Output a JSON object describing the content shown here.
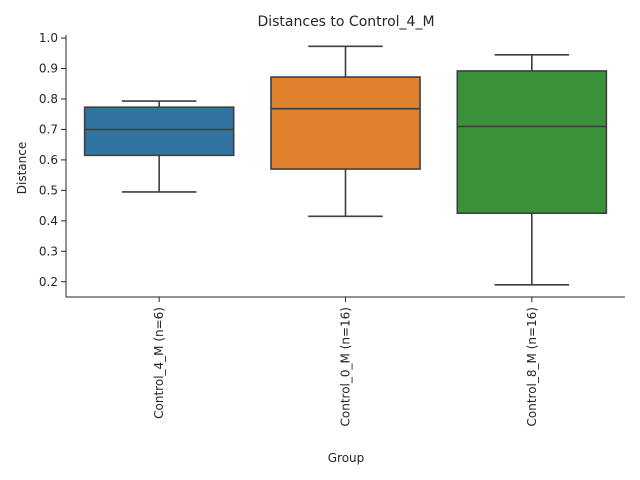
{
  "chart_data": {
    "type": "box",
    "title": "Distances to Control_4_M",
    "xlabel": "Group",
    "ylabel": "Distance",
    "ylim": [
      0.15,
      1.01
    ],
    "yticks": [
      0.2,
      0.3,
      0.4,
      0.5,
      0.6,
      0.7,
      0.8,
      0.9,
      1.0
    ],
    "ytick_labels": [
      "0.2",
      "0.3",
      "0.4",
      "0.5",
      "0.6",
      "0.7",
      "0.8",
      "0.9",
      "1.0"
    ],
    "grid": false,
    "categories": [
      "Control_4_M (n=6)",
      "Control_0_M (n=16)",
      "Control_8_M (n=16)"
    ],
    "boxes": [
      {
        "whisker_low": 0.495,
        "q1": 0.615,
        "median": 0.7,
        "q3": 0.773,
        "whisker_high": 0.793,
        "color": "#3274a1"
      },
      {
        "whisker_low": 0.415,
        "q1": 0.57,
        "median": 0.768,
        "q3": 0.872,
        "whisker_high": 0.973,
        "color": "#e1812c"
      },
      {
        "whisker_low": 0.19,
        "q1": 0.425,
        "median": 0.71,
        "q3": 0.892,
        "whisker_high": 0.945,
        "color": "#3a923a"
      }
    ]
  }
}
